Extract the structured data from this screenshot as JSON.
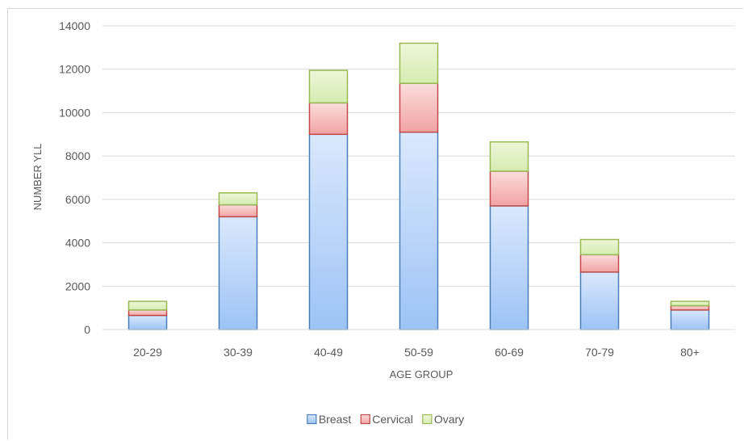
{
  "chart_data": {
    "type": "bar",
    "stacked": true,
    "title": "",
    "xlabel": "AGE GROUP",
    "ylabel": "NUMBER YLL",
    "ylim": [
      0,
      14000
    ],
    "yticks": [
      "0",
      "2000",
      "4000",
      "6000",
      "8000",
      "10000",
      "12000",
      "14000"
    ],
    "grid": true,
    "legend_position": "bottom",
    "categories": [
      "20-29",
      "30-39",
      "40-49",
      "50-59",
      "60-69",
      "70-79",
      "80+"
    ],
    "series": [
      {
        "name": "Breast",
        "values": [
          650,
          5200,
          9000,
          9100,
          5700,
          2650,
          900
        ],
        "color_top": "#dae8fc",
        "color_bottom": "#9dc3f5",
        "stroke": "#4a7ebb"
      },
      {
        "name": "Cervical",
        "values": [
          250,
          550,
          1450,
          2250,
          1600,
          800,
          200
        ],
        "color_top": "#fbdcdc",
        "color_bottom": "#f2a3a3",
        "stroke": "#be4b48"
      },
      {
        "name": "Ovary",
        "values": [
          400,
          550,
          1500,
          1850,
          1350,
          700,
          200
        ],
        "color_top": "#edf7d9",
        "color_bottom": "#d4ecb0",
        "stroke": "#98b954"
      }
    ]
  }
}
